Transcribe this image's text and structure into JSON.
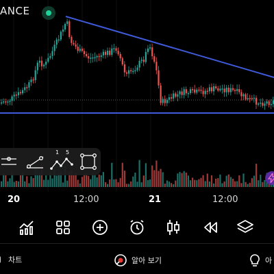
{
  "header": {
    "symbol_fragment": "ANCE",
    "status": "live"
  },
  "chart": {
    "x_axis": [
      {
        "text": "20",
        "bold": true
      },
      {
        "text": "12:00",
        "bold": false
      },
      {
        "text": "21",
        "bold": true
      },
      {
        "text": "12:00",
        "bold": false
      }
    ],
    "drawing_line_color": "#3f5bdc",
    "up_color": "#26a69a",
    "down_color": "#ef5350"
  },
  "drawing_tools": [
    "horizontal-lines-icon",
    "trend-line-icon",
    "elliott-wave-icon",
    "rectangle-icon"
  ],
  "elliott_labels": {
    "a": "1",
    "b": "5"
  },
  "bottom_tools": [
    "indicators-icon",
    "templates-icon",
    "add-icon",
    "alarm-icon",
    "candlestick-icon",
    "replay-icon",
    "layers-icon"
  ],
  "tabs": [
    {
      "label": "차트",
      "icon": "chart-tab-icon"
    },
    {
      "label": "알아 보기",
      "icon": "learn-tab-icon"
    },
    {
      "label": "아",
      "icon": "idea-tab-icon"
    }
  ]
}
